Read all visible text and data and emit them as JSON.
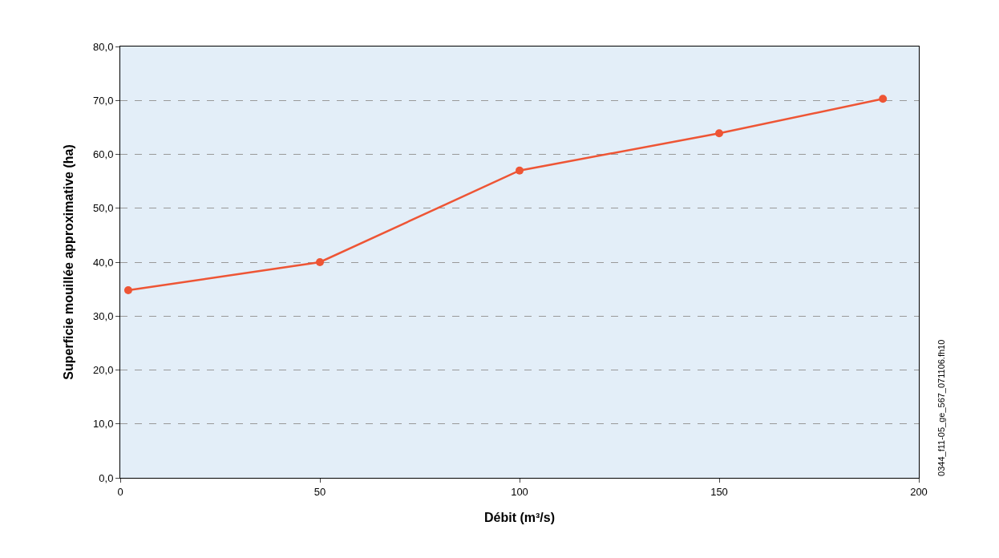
{
  "chart_data": {
    "type": "line",
    "xlabel": "Débit (m³/s)",
    "ylabel": "Superficie mouillée approximative (ha)",
    "annotations": [
      "0344_f11-05_ge_567_071106.fh10"
    ],
    "x": [
      2,
      50,
      100,
      150,
      191
    ],
    "series": [
      {
        "color": "#ee5535",
        "values": [
          34.8,
          40.0,
          57.0,
          63.9,
          70.3
        ]
      }
    ],
    "xlim": [
      0,
      200
    ],
    "xticks": [
      0,
      50,
      100,
      150,
      200
    ],
    "ylim": [
      0,
      80
    ],
    "yticks": [
      {
        "value": 0,
        "label": "0,0"
      },
      {
        "value": 10,
        "label": "10,0"
      },
      {
        "value": 20,
        "label": "20,0"
      },
      {
        "value": 30,
        "label": "30,0"
      },
      {
        "value": 40,
        "label": "40,0"
      },
      {
        "value": 50,
        "label": "50,0"
      },
      {
        "value": 60,
        "label": "60,0"
      },
      {
        "value": 70,
        "label": "70,0"
      },
      {
        "value": 80,
        "label": "80,0"
      }
    ],
    "grid": "y",
    "marker": "circle",
    "line_style": "solid"
  }
}
